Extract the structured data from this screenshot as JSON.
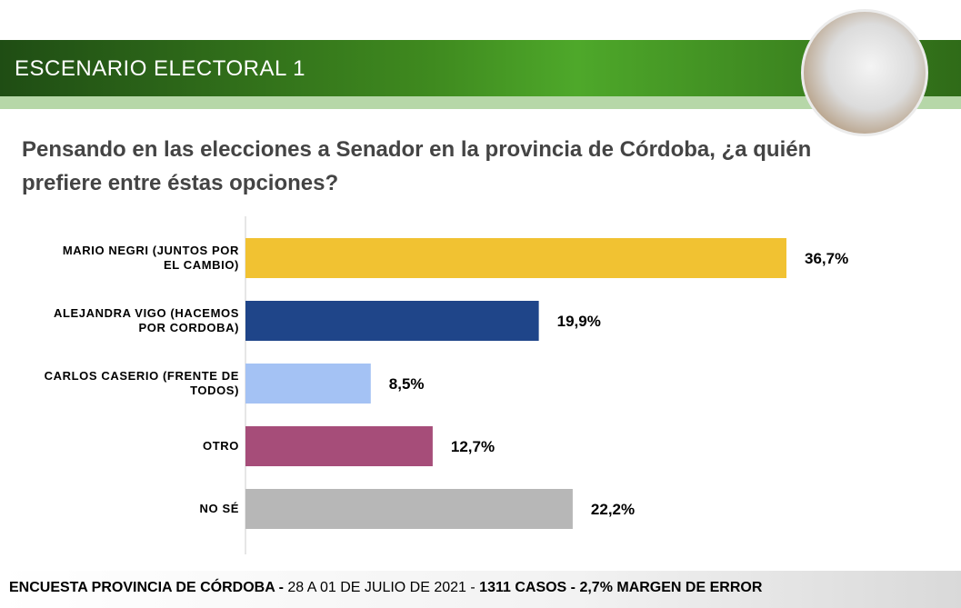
{
  "header": {
    "title": "ESCENARIO ELECTORAL 1"
  },
  "chart_data": {
    "type": "bar",
    "orientation": "horizontal",
    "title": "Pensando en las elecciones a Senador en la provincia de Córdoba, ¿a quién prefiere entre éstas opciones?",
    "categories": [
      "MARIO NEGRI (JUNTOS POR EL CAMBIO)",
      "ALEJANDRA VIGO (HACEMOS POR CORDOBA)",
      "CARLOS CASERIO (FRENTE DE TODOS)",
      "OTRO",
      "NO SÉ"
    ],
    "values": [
      36.7,
      19.9,
      8.5,
      12.7,
      22.2
    ],
    "value_labels": [
      "36,7%",
      "19,9%",
      "8,5%",
      "12,7%",
      "22,2%"
    ],
    "colors": [
      "#f1c232",
      "#1f4589",
      "#a4c2f4",
      "#a64d79",
      "#b7b7b7"
    ]
  },
  "footer": {
    "parts": [
      "ENCUESTA PROVINCIA DE CÓRDOBA -",
      " 28 A 01 DE JULIO DE 2021 - ",
      "1311 CASOS - 2,7% MARGEN DE ERROR"
    ]
  }
}
